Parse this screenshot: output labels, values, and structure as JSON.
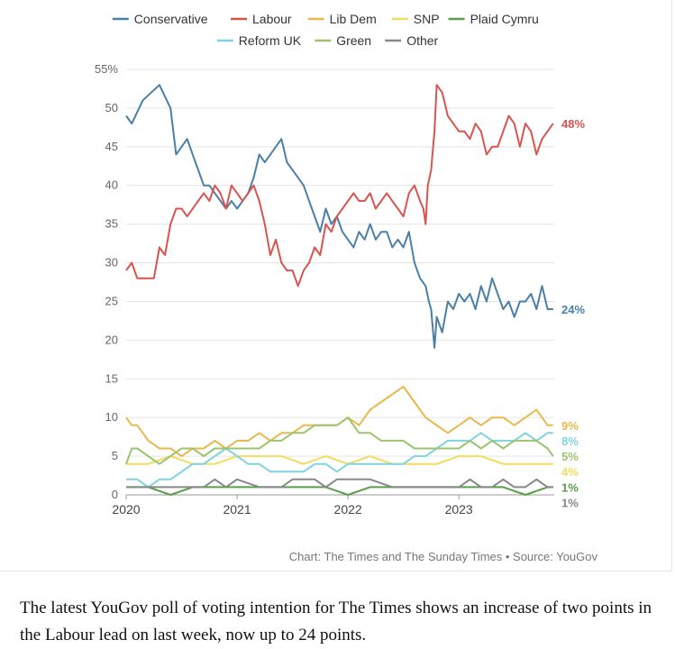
{
  "chart_data": {
    "type": "line",
    "ylim": [
      0,
      55
    ],
    "y_ticks": [
      0,
      5,
      10,
      15,
      20,
      25,
      30,
      35,
      40,
      45,
      50,
      55
    ],
    "y_tick_labels": [
      "0",
      "5",
      "10",
      "15",
      "20",
      "25",
      "30",
      "35",
      "40",
      "45",
      "50",
      "55%"
    ],
    "x_ticks": [
      2020,
      2021,
      2022,
      2023
    ],
    "x_tick_labels": [
      "2020",
      "2021",
      "2022",
      "2023"
    ],
    "xlim": [
      2020.0,
      2023.86
    ],
    "grid": true,
    "legend_position": "top",
    "series": [
      {
        "name": "Conservative",
        "color": "#4a7fa8",
        "end_label": "24%",
        "x": [
          2020.0,
          2020.05,
          2020.15,
          2020.3,
          2020.4,
          2020.45,
          2020.55,
          2020.6,
          2020.65,
          2020.7,
          2020.75,
          2020.8,
          2020.9,
          2020.95,
          2021.0,
          2021.05,
          2021.1,
          2021.15,
          2021.2,
          2021.25,
          2021.3,
          2021.35,
          2021.4,
          2021.45,
          2021.5,
          2021.55,
          2021.6,
          2021.65,
          2021.7,
          2021.75,
          2021.8,
          2021.85,
          2021.9,
          2021.95,
          2022.0,
          2022.05,
          2022.1,
          2022.15,
          2022.2,
          2022.25,
          2022.3,
          2022.35,
          2022.4,
          2022.45,
          2022.5,
          2022.55,
          2022.6,
          2022.65,
          2022.7,
          2022.73,
          2022.75,
          2022.78,
          2022.8,
          2022.85,
          2022.9,
          2022.95,
          2023.0,
          2023.05,
          2023.1,
          2023.15,
          2023.2,
          2023.25,
          2023.3,
          2023.35,
          2023.4,
          2023.45,
          2023.5,
          2023.55,
          2023.6,
          2023.65,
          2023.7,
          2023.75,
          2023.8,
          2023.85
        ],
        "values": [
          49,
          48,
          51,
          53,
          50,
          44,
          46,
          44,
          42,
          40,
          40,
          39,
          37,
          38,
          37,
          38,
          39,
          41,
          44,
          43,
          44,
          45,
          46,
          43,
          42,
          41,
          40,
          38,
          36,
          34,
          37,
          35,
          36,
          34,
          33,
          32,
          34,
          33,
          35,
          33,
          34,
          34,
          32,
          33,
          32,
          34,
          30,
          28,
          27,
          25,
          24,
          19,
          23,
          21,
          25,
          24,
          26,
          25,
          26,
          24,
          27,
          25,
          28,
          26,
          24,
          25,
          23,
          25,
          25,
          26,
          24,
          27,
          24,
          24
        ]
      },
      {
        "name": "Labour",
        "color": "#d9534f",
        "end_label": "48%",
        "x": [
          2020.0,
          2020.05,
          2020.1,
          2020.15,
          2020.2,
          2020.25,
          2020.3,
          2020.35,
          2020.4,
          2020.45,
          2020.5,
          2020.55,
          2020.6,
          2020.65,
          2020.7,
          2020.75,
          2020.8,
          2020.85,
          2020.9,
          2020.95,
          2021.0,
          2021.05,
          2021.1,
          2021.15,
          2021.2,
          2021.25,
          2021.3,
          2021.35,
          2021.4,
          2021.45,
          2021.5,
          2021.55,
          2021.6,
          2021.65,
          2021.7,
          2021.75,
          2021.8,
          2021.85,
          2021.9,
          2021.95,
          2022.0,
          2022.05,
          2022.1,
          2022.15,
          2022.2,
          2022.25,
          2022.3,
          2022.35,
          2022.4,
          2022.45,
          2022.5,
          2022.55,
          2022.6,
          2022.65,
          2022.68,
          2022.7,
          2022.72,
          2022.75,
          2022.78,
          2022.8,
          2022.85,
          2022.9,
          2022.95,
          2023.0,
          2023.05,
          2023.1,
          2023.15,
          2023.2,
          2023.25,
          2023.3,
          2023.35,
          2023.4,
          2023.45,
          2023.5,
          2023.55,
          2023.6,
          2023.65,
          2023.7,
          2023.75,
          2023.8,
          2023.85
        ],
        "values": [
          29,
          30,
          28,
          28,
          28,
          28,
          32,
          31,
          35,
          37,
          37,
          36,
          37,
          38,
          39,
          38,
          40,
          39,
          37,
          40,
          39,
          38,
          39,
          40,
          38,
          35,
          31,
          33,
          30,
          29,
          29,
          27,
          29,
          30,
          32,
          31,
          35,
          34,
          36,
          37,
          38,
          39,
          38,
          38,
          39,
          37,
          38,
          39,
          38,
          37,
          36,
          39,
          40,
          38,
          37,
          35,
          40,
          42,
          47,
          53,
          52,
          49,
          48,
          47,
          47,
          46,
          48,
          47,
          44,
          45,
          45,
          47,
          49,
          48,
          45,
          48,
          47,
          44,
          46,
          47,
          48
        ]
      },
      {
        "name": "Lib Dem",
        "color": "#e8b84a",
        "end_label": "9%",
        "x": [
          2020.0,
          2020.05,
          2020.1,
          2020.15,
          2020.2,
          2020.3,
          2020.4,
          2020.5,
          2020.6,
          2020.7,
          2020.8,
          2020.9,
          2021.0,
          2021.1,
          2021.2,
          2021.3,
          2021.4,
          2021.5,
          2021.6,
          2021.7,
          2021.8,
          2021.9,
          2022.0,
          2022.1,
          2022.2,
          2022.3,
          2022.4,
          2022.5,
          2022.55,
          2022.6,
          2022.65,
          2022.7,
          2022.8,
          2022.9,
          2023.0,
          2023.1,
          2023.2,
          2023.3,
          2023.4,
          2023.5,
          2023.6,
          2023.7,
          2023.75,
          2023.8,
          2023.85
        ],
        "values": [
          10,
          9,
          9,
          8,
          7,
          6,
          6,
          5,
          6,
          6,
          7,
          6,
          7,
          7,
          8,
          7,
          8,
          8,
          9,
          9,
          9,
          9,
          10,
          9,
          11,
          12,
          13,
          14,
          13,
          12,
          11,
          10,
          9,
          8,
          9,
          10,
          9,
          10,
          10,
          9,
          10,
          11,
          10,
          9,
          9
        ]
      },
      {
        "name": "SNP",
        "color": "#f2dc5d",
        "end_label": "4%",
        "x": [
          2020.0,
          2020.2,
          2020.4,
          2020.6,
          2020.8,
          2021.0,
          2021.2,
          2021.4,
          2021.6,
          2021.8,
          2022.0,
          2022.2,
          2022.4,
          2022.6,
          2022.8,
          2023.0,
          2023.2,
          2023.4,
          2023.6,
          2023.8,
          2023.85
        ],
        "values": [
          4,
          4,
          5,
          4,
          4,
          5,
          5,
          5,
          4,
          5,
          4,
          5,
          4,
          4,
          4,
          5,
          5,
          4,
          4,
          4,
          4
        ]
      },
      {
        "name": "Plaid Cymru",
        "color": "#5a9e4b",
        "end_label": "1%",
        "x": [
          2020.0,
          2020.2,
          2020.4,
          2020.6,
          2020.8,
          2021.0,
          2021.2,
          2021.4,
          2021.6,
          2021.8,
          2022.0,
          2022.2,
          2022.4,
          2022.6,
          2022.8,
          2023.0,
          2023.2,
          2023.4,
          2023.6,
          2023.8,
          2023.85
        ],
        "values": [
          1,
          1,
          0,
          1,
          1,
          1,
          1,
          1,
          1,
          1,
          0,
          1,
          1,
          1,
          1,
          1,
          1,
          1,
          0,
          1,
          1
        ]
      },
      {
        "name": "Reform UK",
        "color": "#7fd3e0",
        "end_label": "8%",
        "x": [
          2020.0,
          2020.1,
          2020.2,
          2020.3,
          2020.4,
          2020.5,
          2020.6,
          2020.7,
          2020.8,
          2020.9,
          2021.0,
          2021.1,
          2021.2,
          2021.3,
          2021.4,
          2021.5,
          2021.6,
          2021.7,
          2021.8,
          2021.9,
          2022.0,
          2022.1,
          2022.2,
          2022.3,
          2022.4,
          2022.5,
          2022.6,
          2022.7,
          2022.8,
          2022.9,
          2023.0,
          2023.1,
          2023.2,
          2023.3,
          2023.4,
          2023.5,
          2023.6,
          2023.7,
          2023.8,
          2023.85
        ],
        "values": [
          2,
          2,
          1,
          2,
          2,
          3,
          4,
          4,
          5,
          6,
          5,
          4,
          4,
          3,
          3,
          3,
          3,
          4,
          4,
          3,
          4,
          4,
          4,
          4,
          4,
          4,
          5,
          5,
          6,
          7,
          7,
          7,
          8,
          7,
          7,
          7,
          8,
          7,
          8,
          8
        ]
      },
      {
        "name": "Green",
        "color": "#9bc46e",
        "end_label": "5%",
        "x": [
          2020.0,
          2020.05,
          2020.1,
          2020.2,
          2020.3,
          2020.4,
          2020.5,
          2020.6,
          2020.7,
          2020.8,
          2020.9,
          2021.0,
          2021.1,
          2021.2,
          2021.3,
          2021.4,
          2021.5,
          2021.6,
          2021.7,
          2021.8,
          2021.9,
          2022.0,
          2022.1,
          2022.2,
          2022.3,
          2022.4,
          2022.5,
          2022.6,
          2022.7,
          2022.8,
          2022.9,
          2023.0,
          2023.1,
          2023.2,
          2023.3,
          2023.4,
          2023.5,
          2023.6,
          2023.7,
          2023.8,
          2023.85
        ],
        "values": [
          4,
          6,
          6,
          5,
          4,
          5,
          6,
          6,
          5,
          6,
          6,
          6,
          6,
          6,
          7,
          7,
          8,
          8,
          9,
          9,
          9,
          10,
          8,
          8,
          7,
          7,
          7,
          6,
          6,
          6,
          6,
          6,
          7,
          6,
          7,
          6,
          7,
          7,
          7,
          6,
          5
        ]
      },
      {
        "name": "Other",
        "color": "#888888",
        "end_label": "1%",
        "x": [
          2020.0,
          2020.2,
          2020.4,
          2020.6,
          2020.7,
          2020.8,
          2020.9,
          2021.0,
          2021.2,
          2021.4,
          2021.5,
          2021.6,
          2021.7,
          2021.8,
          2021.9,
          2022.0,
          2022.1,
          2022.2,
          2022.4,
          2022.6,
          2022.8,
          2023.0,
          2023.1,
          2023.2,
          2023.3,
          2023.4,
          2023.5,
          2023.6,
          2023.7,
          2023.8,
          2023.85
        ],
        "values": [
          1,
          1,
          1,
          1,
          1,
          2,
          1,
          2,
          1,
          1,
          2,
          2,
          2,
          1,
          2,
          2,
          2,
          2,
          1,
          1,
          1,
          1,
          2,
          1,
          1,
          2,
          1,
          1,
          2,
          1,
          1
        ]
      }
    ],
    "source": "Chart: The Times and The Sunday Times • Source: YouGov"
  },
  "legend_row1": [
    "Conservative",
    "Labour",
    "Lib Dem",
    "SNP",
    "Plaid Cymru"
  ],
  "legend_row2": [
    "Reform UK",
    "Green",
    "Other"
  ],
  "caption": "The latest YouGov poll of voting intention for The Times shows an increase of two points in the Labour lead on last week, now up to 24 points."
}
